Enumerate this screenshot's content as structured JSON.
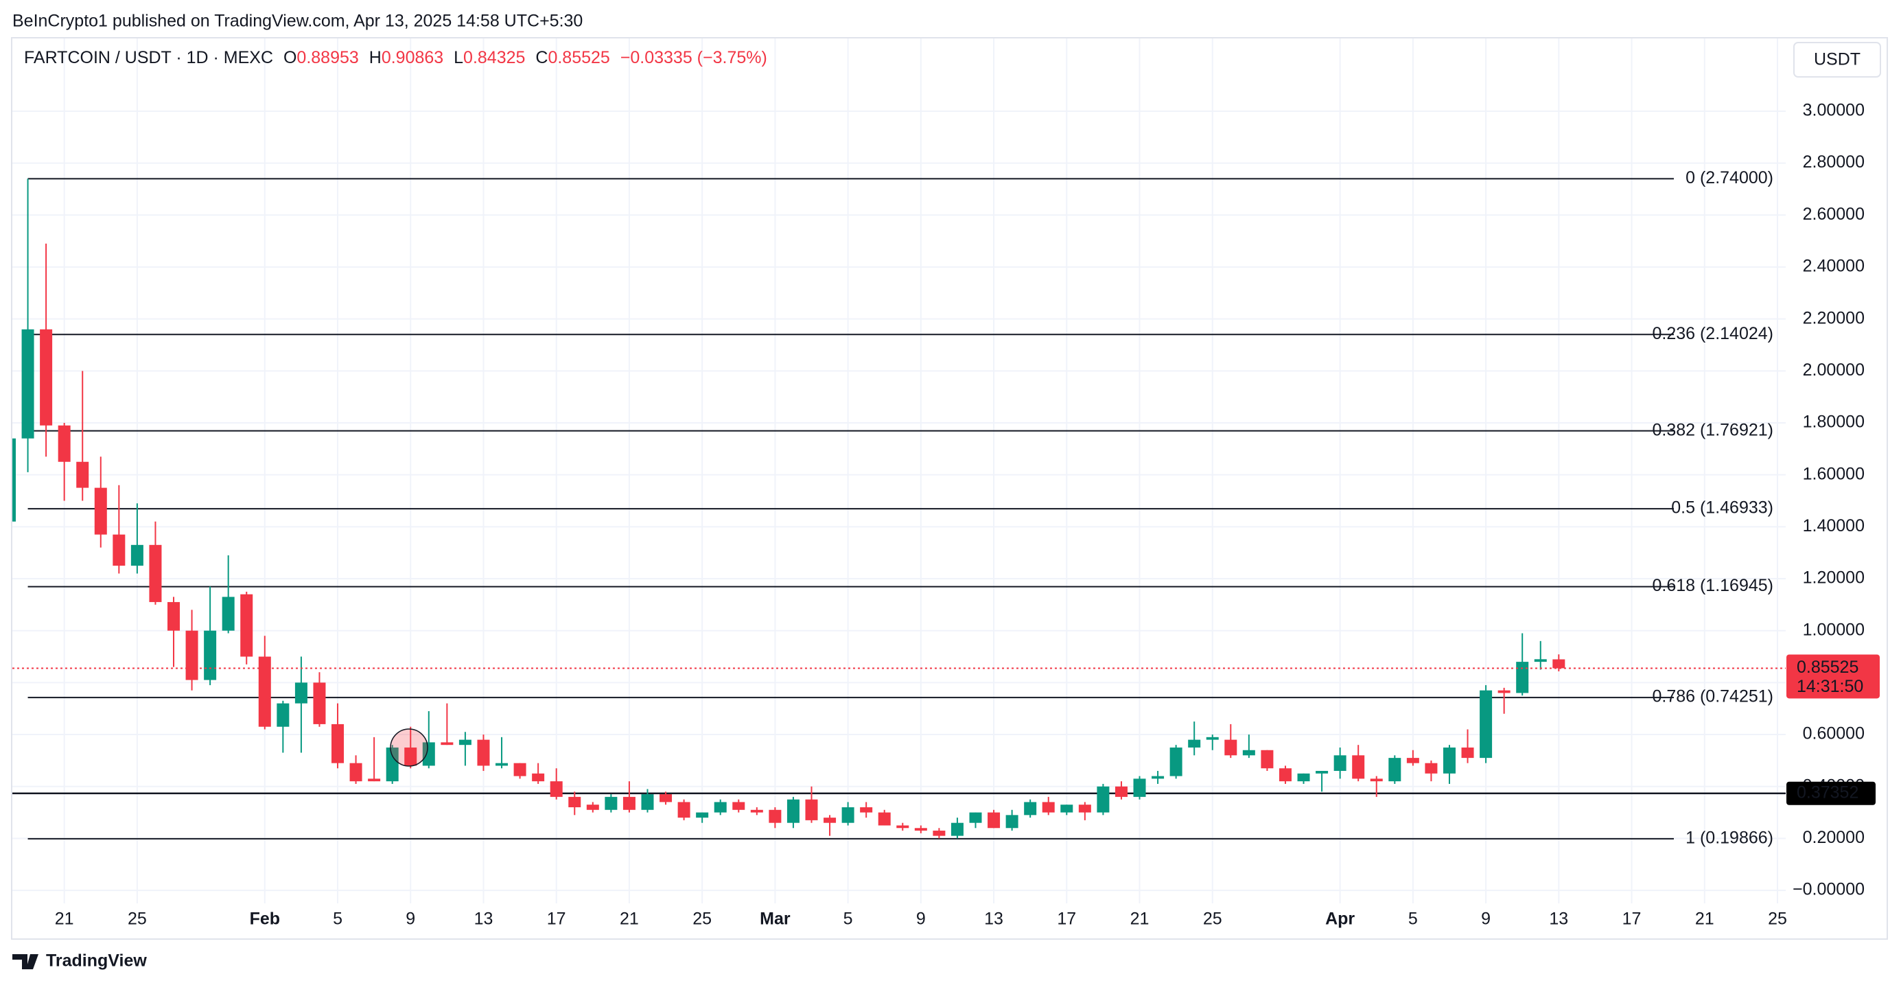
{
  "header": {
    "published": "BeInCrypto1 published on TradingView.com, Apr 13, 2025 14:58 UTC+5:30"
  },
  "chart_data": {
    "type": "candlestick",
    "symbol": "FARTCOIN / USDT · 1D · MEXC",
    "ohlc_labels": [
      "O",
      "H",
      "L",
      "C"
    ],
    "change": "−0.03335 (−3.75%)",
    "currency": "USDT",
    "colors": {
      "up": "#089981",
      "down": "#f23645"
    },
    "grid": true,
    "x": [
      "2025-01-18",
      "2025-01-19",
      "2025-01-20",
      "2025-01-21",
      "2025-01-22",
      "2025-01-23",
      "2025-01-24",
      "2025-01-25",
      "2025-01-26",
      "2025-01-27",
      "2025-01-28",
      "2025-01-29",
      "2025-01-30",
      "2025-01-31",
      "2025-02-01",
      "2025-02-02",
      "2025-02-03",
      "2025-02-04",
      "2025-02-05",
      "2025-02-06",
      "2025-02-07",
      "2025-02-08",
      "2025-02-09",
      "2025-02-10",
      "2025-02-11",
      "2025-02-12",
      "2025-02-13",
      "2025-02-14",
      "2025-02-15",
      "2025-02-16",
      "2025-02-17",
      "2025-02-18",
      "2025-02-19",
      "2025-02-20",
      "2025-02-21",
      "2025-02-22",
      "2025-02-23",
      "2025-02-24",
      "2025-02-25",
      "2025-02-26",
      "2025-02-27",
      "2025-02-28",
      "2025-03-01",
      "2025-03-02",
      "2025-03-03",
      "2025-03-04",
      "2025-03-05",
      "2025-03-06",
      "2025-03-07",
      "2025-03-08",
      "2025-03-09",
      "2025-03-10",
      "2025-03-11",
      "2025-03-12",
      "2025-03-13",
      "2025-03-14",
      "2025-03-15",
      "2025-03-16",
      "2025-03-17",
      "2025-03-18",
      "2025-03-19",
      "2025-03-20",
      "2025-03-21",
      "2025-03-22",
      "2025-03-23",
      "2025-03-24",
      "2025-03-25",
      "2025-03-26",
      "2025-03-27",
      "2025-03-28",
      "2025-03-29",
      "2025-03-30",
      "2025-03-31",
      "2025-04-01",
      "2025-04-02",
      "2025-04-03",
      "2025-04-04",
      "2025-04-05",
      "2025-04-06",
      "2025-04-07",
      "2025-04-08",
      "2025-04-09",
      "2025-04-10",
      "2025-04-11",
      "2025-04-12",
      "2025-04-13"
    ],
    "open": [
      1.42,
      1.74,
      2.16,
      1.79,
      1.65,
      1.55,
      1.37,
      1.25,
      1.33,
      1.11,
      1.0,
      0.81,
      1.0,
      1.14,
      0.9,
      0.63,
      0.72,
      0.8,
      0.64,
      0.49,
      0.43,
      0.42,
      0.55,
      0.48,
      0.57,
      0.56,
      0.58,
      0.48,
      0.49,
      0.45,
      0.42,
      0.36,
      0.33,
      0.31,
      0.36,
      0.31,
      0.37,
      0.34,
      0.28,
      0.3,
      0.34,
      0.31,
      0.31,
      0.26,
      0.35,
      0.28,
      0.26,
      0.32,
      0.3,
      0.25,
      0.24,
      0.23,
      0.21,
      0.26,
      0.3,
      0.24,
      0.29,
      0.34,
      0.3,
      0.33,
      0.3,
      0.4,
      0.36,
      0.43,
      0.44,
      0.55,
      0.58,
      0.58,
      0.52,
      0.54,
      0.47,
      0.42,
      0.45,
      0.46,
      0.52,
      0.43,
      0.42,
      0.51,
      0.49,
      0.45,
      0.55,
      0.51,
      0.77,
      0.76,
      0.88,
      0.88953
    ],
    "high": [
      1.74,
      2.74,
      2.49,
      1.8,
      2.0,
      1.67,
      1.56,
      1.49,
      1.42,
      1.13,
      1.08,
      1.17,
      1.29,
      1.15,
      0.98,
      0.73,
      0.9,
      0.84,
      0.72,
      0.52,
      0.59,
      0.56,
      0.63,
      0.69,
      0.72,
      0.61,
      0.6,
      0.59,
      0.49,
      0.49,
      0.47,
      0.38,
      0.34,
      0.37,
      0.42,
      0.39,
      0.38,
      0.35,
      0.3,
      0.35,
      0.35,
      0.32,
      0.32,
      0.36,
      0.4,
      0.29,
      0.34,
      0.34,
      0.31,
      0.26,
      0.25,
      0.24,
      0.28,
      0.3,
      0.31,
      0.31,
      0.35,
      0.36,
      0.33,
      0.34,
      0.41,
      0.42,
      0.44,
      0.46,
      0.56,
      0.65,
      0.6,
      0.64,
      0.6,
      0.54,
      0.48,
      0.45,
      0.46,
      0.55,
      0.56,
      0.44,
      0.52,
      0.54,
      0.5,
      0.56,
      0.62,
      0.79,
      0.78,
      0.99,
      0.96,
      0.90863
    ],
    "low": [
      1.41,
      1.61,
      1.67,
      1.5,
      1.5,
      1.32,
      1.22,
      1.22,
      1.1,
      0.86,
      0.77,
      0.79,
      0.99,
      0.87,
      0.62,
      0.53,
      0.53,
      0.63,
      0.47,
      0.41,
      0.42,
      0.41,
      0.47,
      0.47,
      0.56,
      0.48,
      0.46,
      0.47,
      0.43,
      0.41,
      0.35,
      0.29,
      0.3,
      0.3,
      0.3,
      0.3,
      0.33,
      0.27,
      0.26,
      0.29,
      0.3,
      0.29,
      0.24,
      0.24,
      0.26,
      0.21,
      0.25,
      0.28,
      0.25,
      0.23,
      0.22,
      0.2,
      0.2,
      0.24,
      0.24,
      0.23,
      0.28,
      0.29,
      0.29,
      0.27,
      0.29,
      0.35,
      0.35,
      0.41,
      0.43,
      0.52,
      0.54,
      0.51,
      0.51,
      0.46,
      0.41,
      0.41,
      0.38,
      0.43,
      0.42,
      0.36,
      0.41,
      0.48,
      0.42,
      0.41,
      0.49,
      0.49,
      0.68,
      0.75,
      0.85,
      0.84325
    ],
    "close": [
      1.74,
      2.16,
      1.79,
      1.65,
      1.55,
      1.37,
      1.25,
      1.33,
      1.11,
      1.0,
      0.81,
      1.0,
      1.13,
      0.9,
      0.63,
      0.72,
      0.8,
      0.64,
      0.49,
      0.42,
      0.42,
      0.55,
      0.48,
      0.57,
      0.56,
      0.58,
      0.48,
      0.49,
      0.44,
      0.42,
      0.36,
      0.32,
      0.31,
      0.36,
      0.31,
      0.37,
      0.34,
      0.28,
      0.3,
      0.34,
      0.31,
      0.3,
      0.26,
      0.35,
      0.27,
      0.26,
      0.32,
      0.3,
      0.25,
      0.24,
      0.23,
      0.21,
      0.26,
      0.3,
      0.24,
      0.29,
      0.34,
      0.3,
      0.33,
      0.3,
      0.4,
      0.36,
      0.43,
      0.44,
      0.55,
      0.58,
      0.59,
      0.52,
      0.54,
      0.47,
      0.42,
      0.45,
      0.46,
      0.52,
      0.43,
      0.42,
      0.51,
      0.49,
      0.45,
      0.55,
      0.51,
      0.77,
      0.76,
      0.88,
      0.89,
      0.85525
    ],
    "xlim": [
      "2025-01-18",
      "2025-04-25"
    ],
    "xticks": [
      {
        "value": "2025-01-21",
        "label": "21"
      },
      {
        "value": "2025-01-25",
        "label": "25"
      },
      {
        "value": "2025-02-01",
        "label": "Feb"
      },
      {
        "value": "2025-02-05",
        "label": "5"
      },
      {
        "value": "2025-02-09",
        "label": "9"
      },
      {
        "value": "2025-02-13",
        "label": "13"
      },
      {
        "value": "2025-02-17",
        "label": "17"
      },
      {
        "value": "2025-02-21",
        "label": "21"
      },
      {
        "value": "2025-02-25",
        "label": "25"
      },
      {
        "value": "2025-03-01",
        "label": "Mar"
      },
      {
        "value": "2025-03-05",
        "label": "5"
      },
      {
        "value": "2025-03-09",
        "label": "9"
      },
      {
        "value": "2025-03-13",
        "label": "13"
      },
      {
        "value": "2025-03-17",
        "label": "17"
      },
      {
        "value": "2025-03-21",
        "label": "21"
      },
      {
        "value": "2025-03-25",
        "label": "25"
      },
      {
        "value": "2025-04-01",
        "label": "Apr"
      },
      {
        "value": "2025-04-05",
        "label": "5"
      },
      {
        "value": "2025-04-09",
        "label": "9"
      },
      {
        "value": "2025-04-13",
        "label": "13"
      },
      {
        "value": "2025-04-17",
        "label": "17"
      },
      {
        "value": "2025-04-21",
        "label": "21"
      },
      {
        "value": "2025-04-25",
        "label": "25"
      }
    ],
    "ylim": [
      -0.05,
      3.28
    ],
    "yticks": [
      {
        "value": 3,
        "label": "3.00000"
      },
      {
        "value": 2.8,
        "label": "2.80000"
      },
      {
        "value": 2.6,
        "label": "2.60000"
      },
      {
        "value": 2.4,
        "label": "2.40000"
      },
      {
        "value": 2.2,
        "label": "2.20000"
      },
      {
        "value": 2,
        "label": "2.00000"
      },
      {
        "value": 1.8,
        "label": "1.80000"
      },
      {
        "value": 1.6,
        "label": "1.60000"
      },
      {
        "value": 1.4,
        "label": "1.40000"
      },
      {
        "value": 1.2,
        "label": "1.20000"
      },
      {
        "value": 1,
        "label": "1.00000"
      },
      {
        "value": 0.8,
        "label": "0.80000"
      },
      {
        "value": 0.6,
        "label": "0.60000"
      },
      {
        "value": 0.4,
        "label": "0.40000"
      },
      {
        "value": 0.2,
        "label": "0.20000"
      },
      {
        "value": 0,
        "label": "−0.00000"
      }
    ],
    "fib_levels": [
      {
        "value": 2.74,
        "label": "0 (2.74000)"
      },
      {
        "value": 2.14024,
        "label": "0.236 (2.14024)"
      },
      {
        "value": 1.76921,
        "label": "0.382 (1.76921)"
      },
      {
        "value": 1.46933,
        "label": "0.5 (1.46933)"
      },
      {
        "value": 1.16945,
        "label": "0.618 (1.16945)"
      },
      {
        "value": 0.74251,
        "label": "0.786 (0.74251)"
      },
      {
        "value": 0.19866,
        "label": "1 (0.19866)"
      }
    ],
    "hline": 0.37352,
    "countdown": "14:31:50"
  },
  "footer": {
    "brand": "TradingView"
  }
}
